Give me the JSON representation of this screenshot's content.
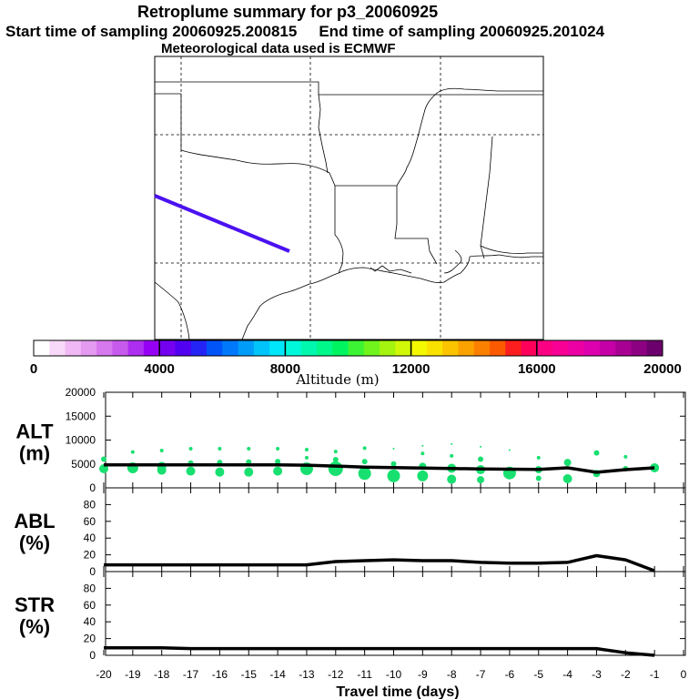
{
  "header": {
    "line1": "Retroplume summary for p3_20060925",
    "start_label": "Start time of sampling 20060925.200815",
    "end_label": "End time of sampling 20060925.201024",
    "line3": "Meteorological data used is ECMWF"
  },
  "map": {
    "track_color": "#4b12f0"
  },
  "colorbar": {
    "tick_labels": [
      "0",
      "4000",
      "8000",
      "12000",
      "16000",
      "20000"
    ],
    "label": "Altitude (m)",
    "colors": [
      "#ffffff",
      "#f8d8f8",
      "#f0b8f4",
      "#e49af0",
      "#d678ee",
      "#c65aec",
      "#ad2ef0",
      "#9600f4",
      "#7400f2",
      "#5200f2",
      "#2424f6",
      "#0054f8",
      "#0078fa",
      "#009cfa",
      "#00c4fa",
      "#00e6fa",
      "#00f8da",
      "#00f8ae",
      "#00f88a",
      "#00f460",
      "#3cf434",
      "#70f41c",
      "#a4f410",
      "#d0f808",
      "#f4f800",
      "#fae200",
      "#fcc400",
      "#fca200",
      "#fc8000",
      "#fc5a00",
      "#fc1e1e",
      "#fc005a",
      "#fc0084",
      "#f80096",
      "#ec00a4",
      "#dc00ae",
      "#c400a6",
      "#a80092",
      "#8c0082",
      "#6c006c"
    ]
  },
  "chart_data": [
    {
      "type": "scatter",
      "panel_title": "ALT",
      "panel_units": "(m)",
      "ylim": [
        0,
        20000
      ],
      "yticks": [
        "0",
        "5000",
        "10000",
        "15000",
        "20000"
      ],
      "line": {
        "x": [
          -20,
          -19,
          -18,
          -17,
          -16,
          -15,
          -14,
          -13,
          -12,
          -11,
          -10,
          -9,
          -8,
          -7,
          -6,
          -5,
          -4,
          -3,
          -2,
          -1
        ],
        "y": [
          4800,
          4800,
          4800,
          4800,
          4800,
          4800,
          4800,
          4750,
          4550,
          4350,
          4250,
          4150,
          4050,
          3950,
          3900,
          3850,
          4200,
          3250,
          3800,
          4200
        ]
      },
      "dots": [
        {
          "x": -20,
          "y": 6000,
          "r": 3
        },
        {
          "x": -20,
          "y": 4000,
          "r": 5
        },
        {
          "x": -19,
          "y": 7500,
          "r": 2
        },
        {
          "x": -19,
          "y": 4200,
          "r": 6
        },
        {
          "x": -18,
          "y": 7800,
          "r": 2
        },
        {
          "x": -18,
          "y": 4500,
          "r": 5
        },
        {
          "x": -18,
          "y": 3700,
          "r": 5
        },
        {
          "x": -17,
          "y": 8200,
          "r": 2
        },
        {
          "x": -17,
          "y": 5200,
          "r": 3
        },
        {
          "x": -17,
          "y": 3500,
          "r": 5
        },
        {
          "x": -16,
          "y": 8200,
          "r": 2
        },
        {
          "x": -16,
          "y": 5300,
          "r": 3
        },
        {
          "x": -16,
          "y": 3300,
          "r": 5
        },
        {
          "x": -15,
          "y": 8200,
          "r": 2
        },
        {
          "x": -15,
          "y": 5400,
          "r": 3
        },
        {
          "x": -15,
          "y": 3300,
          "r": 5
        },
        {
          "x": -14,
          "y": 8200,
          "r": 2
        },
        {
          "x": -14,
          "y": 5500,
          "r": 3
        },
        {
          "x": -14,
          "y": 3500,
          "r": 5
        },
        {
          "x": -13,
          "y": 8000,
          "r": 2
        },
        {
          "x": -13,
          "y": 6300,
          "r": 2
        },
        {
          "x": -13,
          "y": 4000,
          "r": 7
        },
        {
          "x": -12,
          "y": 7600,
          "r": 2
        },
        {
          "x": -12,
          "y": 5900,
          "r": 3
        },
        {
          "x": -12,
          "y": 4000,
          "r": 8
        },
        {
          "x": -11,
          "y": 8300,
          "r": 2
        },
        {
          "x": -11,
          "y": 5500,
          "r": 3
        },
        {
          "x": -11,
          "y": 3000,
          "r": 7
        },
        {
          "x": -10,
          "y": 8200,
          "r": 1
        },
        {
          "x": -10,
          "y": 5000,
          "r": 3
        },
        {
          "x": -10,
          "y": 2500,
          "r": 7
        },
        {
          "x": -9,
          "y": 8800,
          "r": 1
        },
        {
          "x": -9,
          "y": 7200,
          "r": 2
        },
        {
          "x": -9,
          "y": 4500,
          "r": 4
        },
        {
          "x": -9,
          "y": 2500,
          "r": 6
        },
        {
          "x": -8,
          "y": 9200,
          "r": 1
        },
        {
          "x": -8,
          "y": 6700,
          "r": 2
        },
        {
          "x": -8,
          "y": 4100,
          "r": 5
        },
        {
          "x": -8,
          "y": 1800,
          "r": 5
        },
        {
          "x": -7,
          "y": 8600,
          "r": 1
        },
        {
          "x": -7,
          "y": 6000,
          "r": 3
        },
        {
          "x": -7,
          "y": 3800,
          "r": 5
        },
        {
          "x": -7,
          "y": 1700,
          "r": 4
        },
        {
          "x": -6,
          "y": 7900,
          "r": 1
        },
        {
          "x": -6,
          "y": 3100,
          "r": 7
        },
        {
          "x": -5,
          "y": 6300,
          "r": 2
        },
        {
          "x": -5,
          "y": 3800,
          "r": 4
        },
        {
          "x": -5,
          "y": 2000,
          "r": 3
        },
        {
          "x": -4,
          "y": 5300,
          "r": 4
        },
        {
          "x": -4,
          "y": 1900,
          "r": 5
        },
        {
          "x": -3,
          "y": 7300,
          "r": 3
        },
        {
          "x": -3,
          "y": 3000,
          "r": 4
        },
        {
          "x": -2,
          "y": 6500,
          "r": 2
        },
        {
          "x": -2,
          "y": 4000,
          "r": 3
        },
        {
          "x": -1,
          "y": 4200,
          "r": 5
        }
      ],
      "dot_color": "#18e070"
    },
    {
      "type": "line",
      "panel_title": "ABL",
      "panel_units": "(%)",
      "ylim": [
        0,
        100
      ],
      "yticks": [
        "0",
        "20",
        "40",
        "60",
        "80"
      ],
      "x": [
        -20,
        -19,
        -18,
        -17,
        -16,
        -15,
        -14,
        -13,
        -12,
        -11,
        -10,
        -9,
        -8,
        -7,
        -6,
        -5,
        -4,
        -3,
        -2,
        -1
      ],
      "y": [
        8,
        8,
        8,
        8,
        8,
        8,
        8,
        8,
        12,
        13,
        14,
        13,
        13,
        11,
        10,
        10,
        11,
        19,
        14,
        1
      ]
    },
    {
      "type": "line",
      "panel_title": "STR",
      "panel_units": "(%)",
      "ylim": [
        0,
        100
      ],
      "yticks": [
        "0",
        "20",
        "40",
        "60",
        "80"
      ],
      "x": [
        -20,
        -19,
        -18,
        -17,
        -16,
        -15,
        -14,
        -13,
        -12,
        -11,
        -10,
        -9,
        -8,
        -7,
        -6,
        -5,
        -4,
        -3,
        -2,
        -1
      ],
      "y": [
        9,
        9,
        9,
        8,
        8,
        8,
        8,
        8,
        8,
        8,
        8,
        8,
        8,
        8,
        8,
        8,
        8,
        8,
        3,
        0
      ],
      "xlabel": "Travel time (days)",
      "xticks": [
        "-20",
        "-19",
        "-18",
        "-17",
        "-16",
        "-15",
        "-14",
        "-13",
        "-12",
        "-11",
        "-10",
        "-9",
        "-8",
        "-7",
        "-6",
        "-5",
        "-4",
        "-3",
        "-2",
        "-1",
        "0"
      ]
    }
  ]
}
